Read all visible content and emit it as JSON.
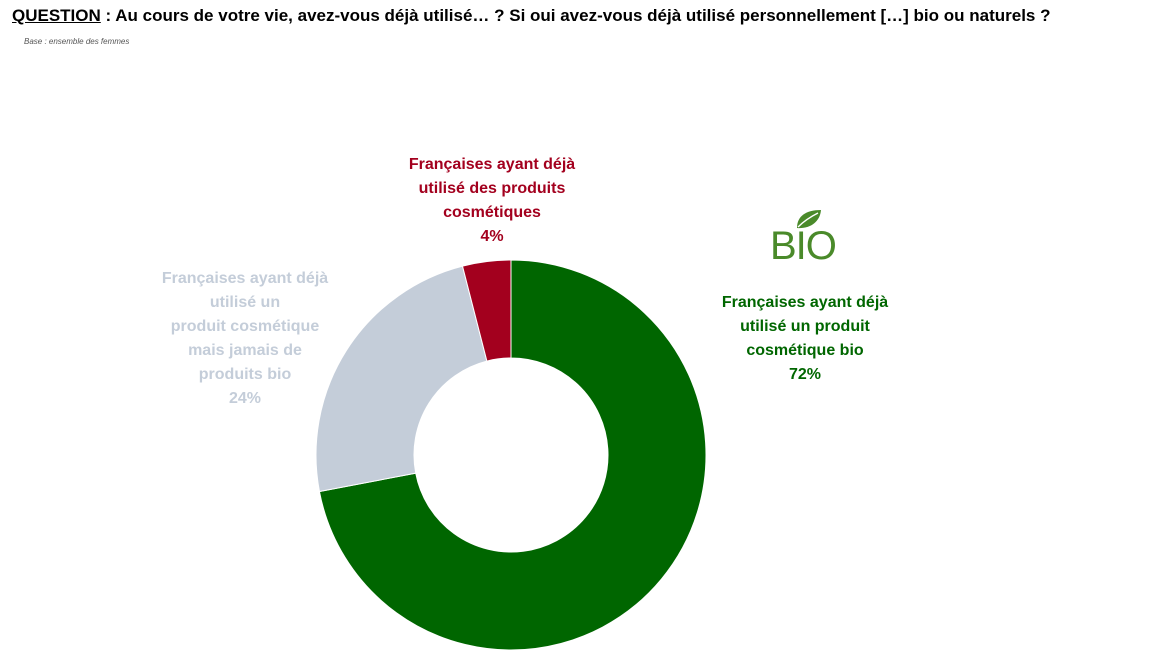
{
  "question": {
    "label": "QUESTION",
    "text": " : Au cours de votre vie, avez-vous déjà utilisé… ? Si oui avez-vous déjà utilisé personnellement […] bio ou naturels ?"
  },
  "base": "Base : ensemble des femmes",
  "logo": {
    "text": "BIO",
    "icon": "leaf-icon",
    "color": "#4a8a2a"
  },
  "chart_data": {
    "type": "pie",
    "style": "donut",
    "series": [
      {
        "label_lines": [
          "Françaises ayant déjà",
          "utilisé un produit",
          "cosmétique bio"
        ],
        "value": 72,
        "value_label": "72%",
        "color": "#006600"
      },
      {
        "label_lines": [
          "Françaises ayant déjà",
          "utilisé un",
          "produit cosmétique",
          "mais jamais de",
          "produits bio"
        ],
        "value": 24,
        "value_label": "24%",
        "color": "#c4cdd9"
      },
      {
        "label_lines": [
          "Françaises ayant déjà",
          "utilisé des produits",
          "cosmétiques"
        ],
        "value": 4,
        "value_label": "4%",
        "color": "#a3001e"
      }
    ]
  }
}
